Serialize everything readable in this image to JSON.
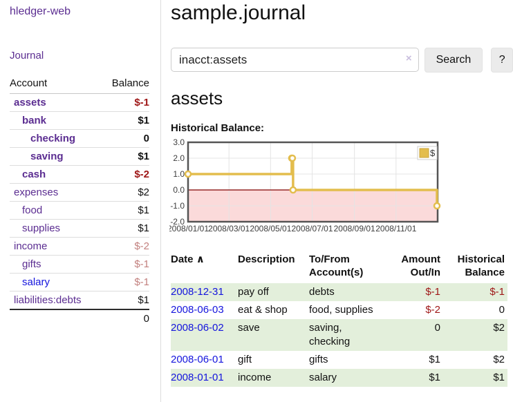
{
  "app": {
    "brand": "hledger-web",
    "nav_journal": "Journal"
  },
  "colors": {
    "purple_link": "#5b2d91",
    "blue_link": "#1414dd",
    "negative_strong": "#9e1616",
    "negative_muted": "#c2807e",
    "row_stripe_green": "#e3efdb",
    "divider_gray": "#dddddd",
    "chart_line_gold": "#e3bd4d",
    "chart_area_pink": "#fbdada",
    "chart_zero_line": "#952827"
  },
  "sidebar": {
    "columns": {
      "account": "Account",
      "balance": "Balance"
    },
    "accounts": [
      {
        "name": "assets",
        "depth": 1,
        "balance": "$-1",
        "bold": true,
        "negative": true
      },
      {
        "name": "bank",
        "depth": 2,
        "balance": "$1",
        "bold": true,
        "negative": false
      },
      {
        "name": "checking",
        "depth": 3,
        "balance": "0",
        "bold": true,
        "negative": false
      },
      {
        "name": "saving",
        "depth": 3,
        "balance": "$1",
        "bold": true,
        "negative": false
      },
      {
        "name": "cash",
        "depth": 2,
        "balance": "$-2",
        "bold": true,
        "negative": true
      },
      {
        "name": "expenses",
        "depth": 1,
        "balance": "$2",
        "bold": false,
        "negative": false
      },
      {
        "name": "food",
        "depth": 2,
        "balance": "$1",
        "bold": false,
        "negative": false
      },
      {
        "name": "supplies",
        "depth": 2,
        "balance": "$1",
        "bold": false,
        "negative": false
      },
      {
        "name": "income",
        "depth": 1,
        "balance": "$-2",
        "bold": false,
        "negative": true
      },
      {
        "name": "gifts",
        "depth": 2,
        "balance": "$-1",
        "bold": false,
        "negative": true
      },
      {
        "name": "salary",
        "depth": 2,
        "balance": "$-1",
        "bold": false,
        "negative": true,
        "blue_link": true
      },
      {
        "name": "liabilities:debts",
        "depth": 1,
        "balance": "$1",
        "bold": false,
        "negative": false
      }
    ],
    "total": "0"
  },
  "header": {
    "title": "sample.journal"
  },
  "search": {
    "value": "inacct:assets",
    "clear_icon": "×",
    "button": "Search",
    "help": "?"
  },
  "account_page": {
    "heading": "assets",
    "chart_title": "Historical Balance:"
  },
  "chart_data": {
    "type": "line",
    "step": true,
    "title": "Historical Balance:",
    "series": [
      {
        "name": "$",
        "color": "#e3bd4d",
        "points": [
          [
            "2008-01-01",
            1
          ],
          [
            "2008-06-01",
            2
          ],
          [
            "2008-06-02",
            2
          ],
          [
            "2008-06-03",
            0
          ],
          [
            "2008-12-31",
            -1
          ]
        ]
      }
    ],
    "x_range": [
      "2008-01-01",
      "2009-01-01"
    ],
    "ylim": [
      -2,
      3
    ],
    "y_ticks": [
      "3.0",
      "2.0",
      "1.0",
      "0.0",
      "-1.0",
      "-2.0"
    ],
    "x_ticks": [
      "2008/01/01",
      "2008/03/01",
      "2008/05/01",
      "2008/07/01",
      "2008/09/01",
      "2008/11/01"
    ],
    "grid": true,
    "legend_position": "top-right",
    "negative_region_color": "#fbdada",
    "zero_line_color": "#952827"
  },
  "table": {
    "columns": [
      "Date",
      "Description",
      "To/From Account(s)",
      "Amount Out/In",
      "Historical Balance"
    ],
    "sort_icon": "∧",
    "rows": [
      {
        "date": "2008-12-31",
        "description": "pay off",
        "accounts": "debts",
        "amount": "$-1",
        "balance": "$-1"
      },
      {
        "date": "2008-06-03",
        "description": "eat & shop",
        "accounts": "food, supplies",
        "amount": "$-2",
        "balance": "0"
      },
      {
        "date": "2008-06-02",
        "description": "save",
        "accounts": "saving, checking",
        "amount": "0",
        "balance": "$2"
      },
      {
        "date": "2008-06-01",
        "description": "gift",
        "accounts": "gifts",
        "amount": "$1",
        "balance": "$2"
      },
      {
        "date": "2008-01-01",
        "description": "income",
        "accounts": "salary",
        "amount": "$1",
        "balance": "$1"
      }
    ]
  }
}
